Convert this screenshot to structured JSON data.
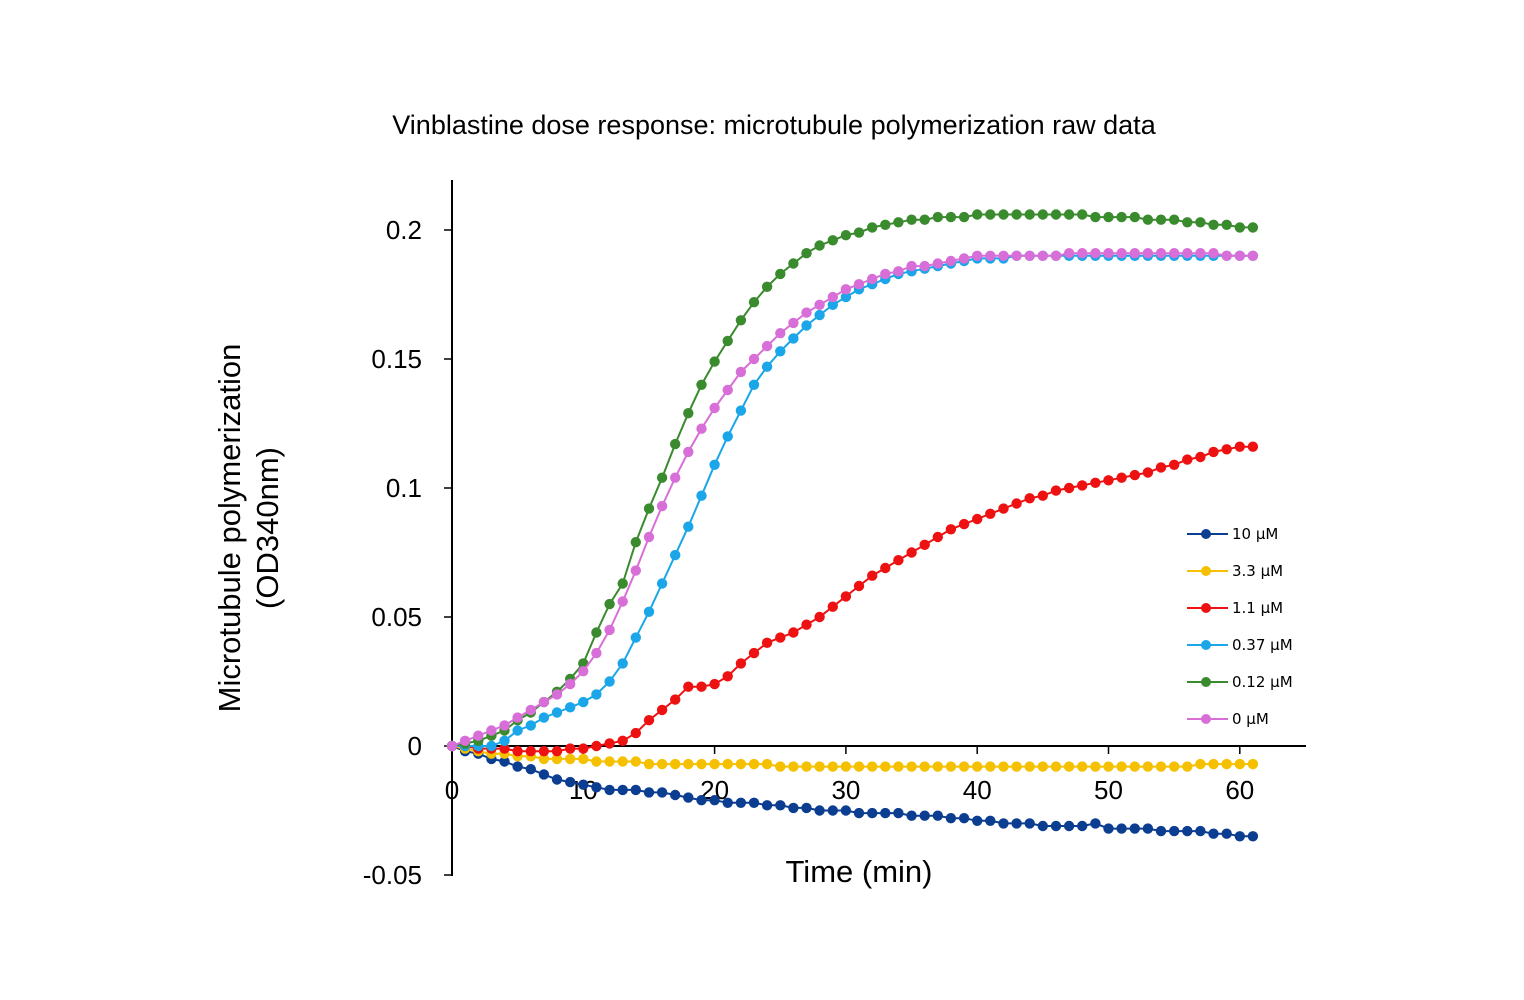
{
  "chart_data": {
    "type": "line",
    "title": "Vinblastine dose response: microtubule polymerization raw data",
    "xlabel": "Time (min)",
    "ylabel": [
      "Microtubule polymerization",
      "(OD340nm)"
    ],
    "xlim": [
      0,
      65
    ],
    "ylim": [
      -0.05,
      0.22
    ],
    "xticks": [
      0,
      10,
      20,
      30,
      40,
      50,
      60
    ],
    "xtick_labels": [
      "0",
      "10",
      "20",
      "30",
      "40",
      "50",
      "60"
    ],
    "yticks": [
      -0.05,
      0,
      0.05,
      0.1,
      0.15,
      0.2
    ],
    "ytick_labels": [
      "-0.05",
      "0",
      "0.05",
      "0.1",
      "0.15",
      "0.2"
    ],
    "x": [
      0,
      1,
      2,
      3,
      4,
      5,
      6,
      7,
      8,
      9,
      10,
      11,
      12,
      13,
      14,
      15,
      16,
      17,
      18,
      19,
      20,
      21,
      22,
      23,
      24,
      25,
      26,
      27,
      28,
      29,
      30,
      31,
      32,
      33,
      34,
      35,
      36,
      37,
      38,
      39,
      40,
      41,
      42,
      43,
      44,
      45,
      46,
      47,
      48,
      49,
      50,
      51,
      52,
      53,
      54,
      55,
      56,
      57,
      58,
      59,
      60,
      61
    ],
    "legend_position": "right",
    "series": [
      {
        "name": "10 µM",
        "color": "#0b3d91",
        "values": [
          0,
          -0.002,
          -0.003,
          -0.005,
          -0.006,
          -0.008,
          -0.009,
          -0.011,
          -0.013,
          -0.014,
          -0.015,
          -0.016,
          -0.017,
          -0.017,
          -0.017,
          -0.018,
          -0.018,
          -0.019,
          -0.02,
          -0.021,
          -0.021,
          -0.022,
          -0.022,
          -0.022,
          -0.023,
          -0.023,
          -0.024,
          -0.024,
          -0.025,
          -0.025,
          -0.025,
          -0.026,
          -0.026,
          -0.026,
          -0.026,
          -0.027,
          -0.027,
          -0.027,
          -0.028,
          -0.028,
          -0.029,
          -0.029,
          -0.03,
          -0.03,
          -0.03,
          -0.031,
          -0.031,
          -0.031,
          -0.031,
          -0.03,
          -0.032,
          -0.032,
          -0.032,
          -0.032,
          -0.033,
          -0.033,
          -0.033,
          -0.033,
          -0.034,
          -0.034,
          -0.035,
          -0.035
        ]
      },
      {
        "name": "3.3 µM",
        "color": "#f5c000",
        "values": [
          0,
          -0.001,
          -0.002,
          -0.003,
          -0.003,
          -0.004,
          -0.004,
          -0.005,
          -0.005,
          -0.005,
          -0.005,
          -0.006,
          -0.006,
          -0.006,
          -0.006,
          -0.007,
          -0.007,
          -0.007,
          -0.007,
          -0.007,
          -0.007,
          -0.007,
          -0.007,
          -0.007,
          -0.007,
          -0.008,
          -0.008,
          -0.008,
          -0.008,
          -0.008,
          -0.008,
          -0.008,
          -0.008,
          -0.008,
          -0.008,
          -0.008,
          -0.008,
          -0.008,
          -0.008,
          -0.008,
          -0.008,
          -0.008,
          -0.008,
          -0.008,
          -0.008,
          -0.008,
          -0.008,
          -0.008,
          -0.008,
          -0.008,
          -0.008,
          -0.008,
          -0.008,
          -0.008,
          -0.008,
          -0.008,
          -0.008,
          -0.007,
          -0.007,
          -0.007,
          -0.007,
          -0.007
        ]
      },
      {
        "name": "1.1 µM",
        "color": "#ee1111",
        "values": [
          0,
          0,
          -0.001,
          -0.001,
          -0.001,
          -0.002,
          -0.002,
          -0.002,
          -0.002,
          -0.001,
          -0.001,
          0,
          0.001,
          0.002,
          0.005,
          0.01,
          0.014,
          0.018,
          0.023,
          0.023,
          0.024,
          0.027,
          0.032,
          0.036,
          0.04,
          0.042,
          0.044,
          0.047,
          0.05,
          0.054,
          0.058,
          0.062,
          0.066,
          0.069,
          0.072,
          0.075,
          0.078,
          0.081,
          0.084,
          0.086,
          0.088,
          0.09,
          0.092,
          0.094,
          0.096,
          0.097,
          0.099,
          0.1,
          0.101,
          0.102,
          0.103,
          0.104,
          0.105,
          0.106,
          0.108,
          0.109,
          0.111,
          0.112,
          0.114,
          0.115,
          0.116,
          0.116
        ]
      },
      {
        "name": "0.37 µM",
        "color": "#1aa6e8",
        "values": [
          0,
          0,
          0,
          0,
          0.002,
          0.006,
          0.008,
          0.011,
          0.013,
          0.015,
          0.017,
          0.02,
          0.025,
          0.032,
          0.042,
          0.052,
          0.063,
          0.074,
          0.085,
          0.097,
          0.109,
          0.12,
          0.13,
          0.14,
          0.147,
          0.153,
          0.158,
          0.163,
          0.167,
          0.171,
          0.174,
          0.177,
          0.179,
          0.181,
          0.183,
          0.184,
          0.185,
          0.186,
          0.187,
          0.188,
          0.189,
          0.189,
          0.189,
          0.19,
          0.19,
          0.19,
          0.19,
          0.19,
          0.19,
          0.19,
          0.19,
          0.19,
          0.19,
          0.19,
          0.19,
          0.19,
          0.19,
          0.19,
          0.19,
          0.19,
          0.19,
          0.19
        ]
      },
      {
        "name": "0.12 µM",
        "color": "#3a8a2e",
        "values": [
          0,
          0.001,
          0.002,
          0.004,
          0.006,
          0.01,
          0.013,
          0.017,
          0.021,
          0.026,
          0.032,
          0.044,
          0.055,
          0.063,
          0.079,
          0.092,
          0.104,
          0.117,
          0.129,
          0.14,
          0.149,
          0.157,
          0.165,
          0.172,
          0.178,
          0.183,
          0.187,
          0.191,
          0.194,
          0.196,
          0.198,
          0.199,
          0.201,
          0.202,
          0.203,
          0.204,
          0.204,
          0.205,
          0.205,
          0.205,
          0.206,
          0.206,
          0.206,
          0.206,
          0.206,
          0.206,
          0.206,
          0.206,
          0.206,
          0.205,
          0.205,
          0.205,
          0.205,
          0.204,
          0.204,
          0.204,
          0.203,
          0.203,
          0.202,
          0.202,
          0.201,
          0.201
        ]
      },
      {
        "name": "0 µM",
        "color": "#d86fd8",
        "values": [
          0,
          0.002,
          0.004,
          0.006,
          0.008,
          0.011,
          0.014,
          0.017,
          0.02,
          0.024,
          0.029,
          0.036,
          0.045,
          0.056,
          0.068,
          0.081,
          0.093,
          0.104,
          0.114,
          0.123,
          0.131,
          0.138,
          0.145,
          0.15,
          0.155,
          0.16,
          0.164,
          0.168,
          0.171,
          0.174,
          0.177,
          0.179,
          0.181,
          0.183,
          0.184,
          0.186,
          0.186,
          0.187,
          0.188,
          0.189,
          0.19,
          0.19,
          0.19,
          0.19,
          0.19,
          0.19,
          0.19,
          0.191,
          0.191,
          0.191,
          0.191,
          0.191,
          0.191,
          0.191,
          0.191,
          0.191,
          0.191,
          0.191,
          0.191,
          0.19,
          0.19,
          0.19
        ]
      }
    ]
  }
}
